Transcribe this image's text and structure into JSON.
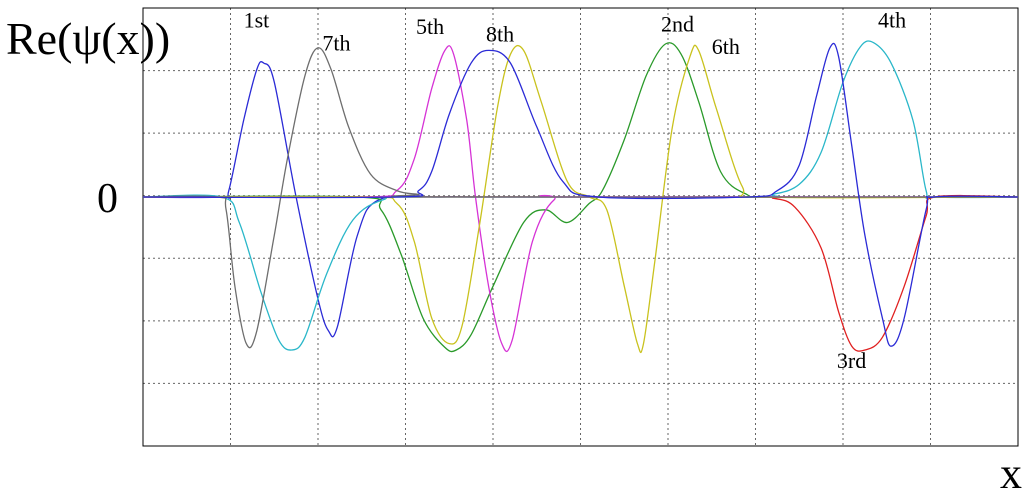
{
  "chart_data": {
    "type": "line",
    "ylabel": "Re(ψ(x))",
    "xlabel": "x",
    "y_zero_label": "0",
    "grid": true,
    "x_range": [
      0,
      10
    ],
    "y_range": [
      -1.2,
      1.2
    ],
    "series": [
      {
        "name": "1st",
        "color": "#2b2bd6",
        "label_at": [
          1.15,
          1.33
        ],
        "points": [
          [
            0,
            0
          ],
          [
            0.9,
            0
          ],
          [
            0.98,
            0.05
          ],
          [
            1.15,
            0.6
          ],
          [
            1.3,
            1.0
          ],
          [
            1.38,
            1.05
          ],
          [
            1.5,
            0.9
          ],
          [
            1.75,
            0.0
          ],
          [
            2.0,
            -0.8
          ],
          [
            2.12,
            -1.05
          ],
          [
            2.22,
            -1.02
          ],
          [
            2.45,
            -0.3
          ],
          [
            2.7,
            -0.02
          ],
          [
            3.4,
            0
          ],
          [
            4.4,
            0
          ],
          [
            10,
            0
          ]
        ]
      },
      {
        "name": "2nd",
        "color": "#2a9a2a",
        "label_at": [
          5.92,
          1.3
        ],
        "points": [
          [
            0,
            0
          ],
          [
            2.45,
            0
          ],
          [
            2.72,
            -0.1
          ],
          [
            2.95,
            -0.45
          ],
          [
            3.2,
            -0.95
          ],
          [
            3.45,
            -1.18
          ],
          [
            3.58,
            -1.2
          ],
          [
            3.75,
            -1.08
          ],
          [
            4.0,
            -0.7
          ],
          [
            4.35,
            -0.2
          ],
          [
            4.6,
            -0.1
          ],
          [
            4.85,
            -0.2
          ],
          [
            5.1,
            -0.05
          ],
          [
            5.25,
            0.05
          ],
          [
            5.5,
            0.45
          ],
          [
            5.75,
            0.95
          ],
          [
            5.97,
            1.2
          ],
          [
            6.15,
            1.12
          ],
          [
            6.35,
            0.75
          ],
          [
            6.6,
            0.2
          ],
          [
            6.9,
            0.02
          ],
          [
            7.2,
            0
          ],
          [
            10,
            0
          ]
        ]
      },
      {
        "name": "3rd",
        "color": "#e02020",
        "label_at": [
          7.93,
          -1.34
        ],
        "points": [
          [
            0,
            0
          ],
          [
            6.9,
            0
          ],
          [
            7.2,
            -0.01
          ],
          [
            7.45,
            -0.08
          ],
          [
            7.75,
            -0.4
          ],
          [
            7.95,
            -0.9
          ],
          [
            8.1,
            -1.17
          ],
          [
            8.25,
            -1.2
          ],
          [
            8.45,
            -1.1
          ],
          [
            8.7,
            -0.7
          ],
          [
            8.95,
            -0.15
          ],
          [
            9.05,
            0
          ],
          [
            10,
            0
          ]
        ]
      },
      {
        "name": "4th",
        "color": "#2ab7c9",
        "label_at": [
          8.4,
          1.33
        ],
        "points": [
          [
            0,
            0
          ],
          [
            0.9,
            0
          ],
          [
            1.1,
            -0.2
          ],
          [
            1.35,
            -0.75
          ],
          [
            1.55,
            -1.12
          ],
          [
            1.7,
            -1.2
          ],
          [
            1.85,
            -1.1
          ],
          [
            2.1,
            -0.6
          ],
          [
            2.4,
            -0.18
          ],
          [
            2.75,
            -0.02
          ],
          [
            3.2,
            0
          ],
          [
            6.9,
            0
          ],
          [
            7.2,
            0.02
          ],
          [
            7.5,
            0.1
          ],
          [
            7.75,
            0.35
          ],
          [
            8.0,
            0.9
          ],
          [
            8.2,
            1.18
          ],
          [
            8.35,
            1.21
          ],
          [
            8.55,
            1.05
          ],
          [
            8.8,
            0.6
          ],
          [
            8.95,
            0.05
          ],
          [
            9.05,
            0
          ],
          [
            10,
            0
          ]
        ]
      },
      {
        "name": "5th",
        "color": "#d633d6",
        "label_at": [
          3.12,
          1.28
        ],
        "points": [
          [
            0,
            0
          ],
          [
            2.5,
            0
          ],
          [
            2.9,
            0.05
          ],
          [
            3.1,
            0.3
          ],
          [
            3.3,
            0.85
          ],
          [
            3.45,
            1.15
          ],
          [
            3.55,
            1.12
          ],
          [
            3.7,
            0.6
          ],
          [
            3.8,
            0.0
          ],
          [
            3.95,
            -0.7
          ],
          [
            4.1,
            -1.15
          ],
          [
            4.22,
            -1.12
          ],
          [
            4.45,
            -0.35
          ],
          [
            4.7,
            -0.02
          ],
          [
            5.0,
            0
          ],
          [
            10,
            0
          ]
        ]
      },
      {
        "name": "6th",
        "color": "#c9c21e",
        "label_at": [
          6.5,
          1.12
        ],
        "points": [
          [
            0,
            0
          ],
          [
            2.5,
            0
          ],
          [
            2.9,
            -0.05
          ],
          [
            3.1,
            -0.35
          ],
          [
            3.3,
            -0.95
          ],
          [
            3.5,
            -1.15
          ],
          [
            3.65,
            -1.0
          ],
          [
            3.85,
            -0.2
          ],
          [
            4.05,
            0.7
          ],
          [
            4.2,
            1.12
          ],
          [
            4.35,
            1.15
          ],
          [
            4.55,
            0.75
          ],
          [
            4.85,
            0.12
          ],
          [
            5.1,
            0
          ],
          [
            5.3,
            -0.1
          ],
          [
            5.5,
            -0.7
          ],
          [
            5.65,
            -1.15
          ],
          [
            5.72,
            -1.15
          ],
          [
            5.85,
            -0.5
          ],
          [
            6.05,
            0.55
          ],
          [
            6.25,
            1.1
          ],
          [
            6.35,
            1.15
          ],
          [
            6.55,
            0.7
          ],
          [
            6.85,
            0.08
          ],
          [
            7.1,
            0
          ],
          [
            10,
            0
          ]
        ]
      },
      {
        "name": "7th",
        "color": "#6e6e6e",
        "label_at": [
          2.05,
          1.15
        ],
        "points": [
          [
            0,
            0
          ],
          [
            0.85,
            0
          ],
          [
            0.95,
            -0.1
          ],
          [
            1.05,
            -0.7
          ],
          [
            1.18,
            -1.15
          ],
          [
            1.3,
            -1.05
          ],
          [
            1.5,
            -0.3
          ],
          [
            1.65,
            0.3
          ],
          [
            1.85,
            0.95
          ],
          [
            2.0,
            1.17
          ],
          [
            2.15,
            1.0
          ],
          [
            2.35,
            0.55
          ],
          [
            2.6,
            0.18
          ],
          [
            2.9,
            0.05
          ],
          [
            3.15,
            0.02
          ],
          [
            3.4,
            0
          ],
          [
            10,
            0
          ]
        ]
      },
      {
        "name": "8th",
        "color": "#2b2bd6",
        "label_at": [
          3.92,
          1.22
        ],
        "points": [
          [
            0,
            0
          ],
          [
            2.9,
            0
          ],
          [
            3.15,
            0.05
          ],
          [
            3.3,
            0.2
          ],
          [
            3.5,
            0.65
          ],
          [
            3.75,
            1.05
          ],
          [
            3.95,
            1.15
          ],
          [
            4.2,
            1.05
          ],
          [
            4.5,
            0.55
          ],
          [
            4.8,
            0.12
          ],
          [
            5.2,
            0
          ],
          [
            6.9,
            0
          ],
          [
            7.25,
            0.05
          ],
          [
            7.5,
            0.25
          ],
          [
            7.7,
            0.8
          ],
          [
            7.85,
            1.17
          ],
          [
            7.95,
            1.1
          ],
          [
            8.1,
            0.4
          ],
          [
            8.25,
            -0.3
          ],
          [
            8.45,
            -0.95
          ],
          [
            8.55,
            -1.17
          ],
          [
            8.7,
            -0.95
          ],
          [
            8.95,
            -0.1
          ],
          [
            9.05,
            0
          ],
          [
            10,
            0
          ]
        ]
      }
    ]
  }
}
